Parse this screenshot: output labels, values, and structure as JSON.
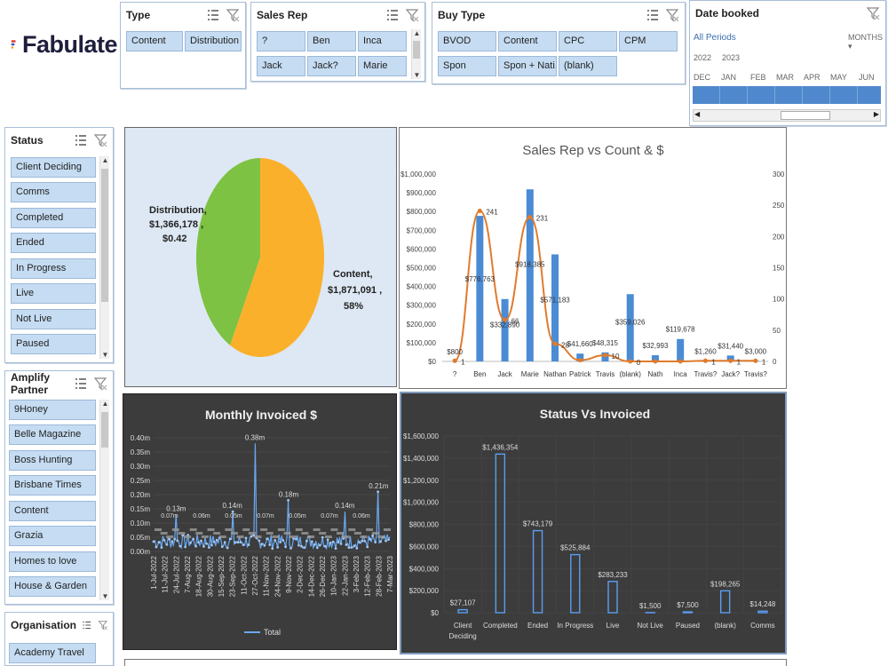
{
  "app": {
    "name": "Fabulate",
    "logo_colors": [
      "#e53935",
      "#3f51b5",
      "#ff9800"
    ]
  },
  "slicers": {
    "type": {
      "title": "Type",
      "items": [
        "Content",
        "Distribution"
      ]
    },
    "sales_rep": {
      "title": "Sales Rep",
      "items": [
        "?",
        "Ben",
        "Inca",
        "Jack",
        "Jack?",
        "Marie"
      ]
    },
    "buy_type": {
      "title": "Buy Type",
      "items": [
        "BVOD",
        "Content",
        "CPC",
        "CPM",
        "Spon",
        "Spon + Nati...",
        "(blank)"
      ]
    },
    "date_booked": {
      "title": "Date booked",
      "periods_label": "All Periods",
      "unit_label": "MONTHS",
      "years": [
        "2022",
        "2023"
      ],
      "months": [
        "DEC",
        "JAN",
        "FEB",
        "MAR",
        "APR",
        "MAY",
        "JUN"
      ]
    },
    "status": {
      "title": "Status",
      "items": [
        "Client Deciding",
        "Comms",
        "Completed",
        "Ended",
        "In Progress",
        "Live",
        "Not Live",
        "Paused"
      ]
    },
    "amplify_partner": {
      "title": "Amplify Partner",
      "items": [
        "9Honey",
        "Belle Magazine",
        "Boss Hunting",
        "Brisbane Times",
        "Content",
        "Grazia",
        "Homes to love",
        "House & Garden"
      ]
    },
    "organisation": {
      "title": "Organisation",
      "items": [
        "Academy Travel"
      ]
    }
  },
  "chart_data": [
    {
      "type": "pie",
      "title": "",
      "slices": [
        {
          "label": "Distribution",
          "value": 1366178,
          "display": "$1,366,178",
          "share": "$0.42",
          "color": "#7dc242"
        },
        {
          "label": "Content",
          "value": 1871091,
          "display": "$1,871,091",
          "share": "58%",
          "color": "#fbb02b"
        }
      ],
      "slice_label_lines": {
        "distribution": [
          "Distribution,",
          "$1,366,178 ,",
          "$0.42"
        ],
        "content": [
          "Content,",
          "$1,871,091 ,",
          "58%"
        ]
      }
    },
    {
      "type": "bar",
      "title": "Sales Rep vs Count & $",
      "categories": [
        "?",
        "Ben",
        "Jack",
        "Marie",
        "Nathan",
        "Patrick",
        "Travis",
        "(blank)",
        "Nath",
        "Inca",
        "Travis?",
        "Jack?",
        "Travis?"
      ],
      "series": [
        {
          "name": "$",
          "axis": "left",
          "values": [
            800,
            776763,
            332890,
            918385,
            571183,
            41660,
            48315,
            359026,
            32993,
            119678,
            1260,
            31440,
            3000
          ],
          "labels": [
            "$800",
            "$776,763",
            "$332,890",
            "$918,385",
            "$571,183",
            "$41,660",
            "$48,315",
            "$359,026",
            "$32,993",
            "$119,678",
            "$1,260",
            "$31,440",
            "$3,000"
          ]
        },
        {
          "name": "Count",
          "axis": "right",
          "type": "line",
          "values": [
            1,
            241,
            66,
            231,
            28,
            2,
            10,
            0,
            0,
            0,
            1,
            1,
            1
          ],
          "labels": [
            "1",
            "241",
            "66",
            "231",
            "28",
            "",
            "10",
            "0",
            "",
            "",
            "1",
            "1",
            "1"
          ]
        }
      ],
      "y_left_ticks": [
        "$0",
        "$100,000",
        "$200,000",
        "$300,000",
        "$400,000",
        "$500,000",
        "$600,000",
        "$700,000",
        "$800,000",
        "$900,000",
        "$1,000,000"
      ],
      "y_right_ticks": [
        "0",
        "50",
        "100",
        "150",
        "200",
        "250",
        "300"
      ],
      "ylim": [
        0,
        1000000
      ],
      "ylim_right": [
        0,
        300
      ]
    },
    {
      "type": "line",
      "title": "Monthly Invoiced $",
      "legend": "Total",
      "y_ticks": [
        "0.00m",
        "0.05m",
        "0.10m",
        "0.15m",
        "0.20m",
        "0.25m",
        "0.30m",
        "0.35m",
        "0.40m"
      ],
      "ylim": [
        0,
        0.4
      ],
      "x_ticks": [
        "1-Jul-2022",
        "11-Jul-2022",
        "24-Jul-2022",
        "7-Aug-2022",
        "18-Aug-2022",
        "30-Aug-2022",
        "15-Sep-2022",
        "23-Sep-2022",
        "11-Oct-2022",
        "27-Oct-2022",
        "11-Nov-2022",
        "24-Nov-2022",
        "9-Nov-2022",
        "2-Dec-2022",
        "14-Dec-2022",
        "26-Dec-2022",
        "10-Jan-2023",
        "22-Jan-2023",
        "3-Feb-2023",
        "12-Feb-2023",
        "28-Feb-2023",
        "7-Mar-2023"
      ],
      "peaks": [
        {
          "x_index": 2,
          "value": 0.13,
          "label": "0.13m"
        },
        {
          "x_index": 7,
          "value": 0.14,
          "label": "0.14m"
        },
        {
          "x_index": 9,
          "value": 0.38,
          "label": "0.38m"
        },
        {
          "x_index": 12,
          "value": 0.18,
          "label": "0.18m"
        },
        {
          "x_index": 17,
          "value": 0.14,
          "label": "0.14m"
        },
        {
          "x_index": 20,
          "value": 0.21,
          "label": "0.21m"
        }
      ],
      "minor_labels": [
        "0.07m",
        "0.06m",
        "0.05m",
        "0.07m",
        "0.05m",
        "0.07m",
        "0.06m"
      ]
    },
    {
      "type": "bar",
      "title": "Status Vs Invoiced",
      "categories": [
        "Client Deciding",
        "Completed",
        "Ended",
        "In Progress",
        "Live",
        "Not Live",
        "Paused",
        "(blank)",
        "Comms"
      ],
      "category_lines": [
        [
          "Client",
          "Deciding"
        ],
        [
          "Completed"
        ],
        [
          "Ended"
        ],
        [
          "In Progress"
        ],
        [
          "Live"
        ],
        [
          "Not Live"
        ],
        [
          "Paused"
        ],
        [
          "(blank)"
        ],
        [
          "Comms"
        ]
      ],
      "values": [
        27107,
        1436354,
        743179,
        525884,
        283233,
        1500,
        7500,
        198265,
        14248
      ],
      "labels": [
        "$27,107",
        "$1,436,354",
        "$743,179",
        "$525,884",
        "$283,233",
        "$1,500",
        "$7,500",
        "$198,265",
        "$14,248"
      ],
      "y_ticks": [
        "$0",
        "$200,000",
        "$400,000",
        "$600,000",
        "$800,000",
        "$1,000,000",
        "$1,200,000",
        "$1,400,000",
        "$1,600,000"
      ],
      "ylim": [
        0,
        1600000
      ]
    }
  ],
  "colors": {
    "chip_fill": "#c5dcf2",
    "chip_border": "#9db9d9",
    "bar_blue": "#4a8bd4",
    "line_orange": "#e07b2c",
    "dark_bg": "#3c3c3c"
  }
}
